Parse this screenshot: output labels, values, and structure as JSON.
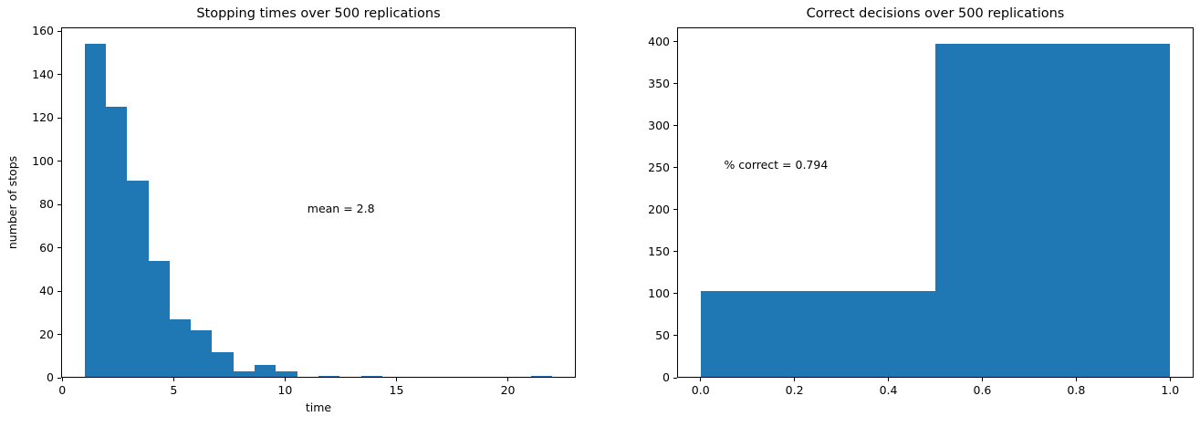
{
  "figure": {
    "background": "#ffffff",
    "text_color": "#000000"
  },
  "chart_data": [
    {
      "type": "bar",
      "subtype": "histogram",
      "title": "Stopping times over 500 replications",
      "xlabel": "time",
      "ylabel": "number of stops",
      "bar_color": "#1f77b4",
      "bin_edges": [
        1.0,
        1.955,
        2.909,
        3.864,
        4.818,
        5.773,
        6.727,
        7.682,
        8.636,
        9.591,
        10.545,
        11.5,
        12.455,
        13.409,
        14.364,
        15.318,
        16.273,
        17.227,
        18.182,
        19.136,
        20.091,
        21.045,
        22.0
      ],
      "counts": [
        154,
        125,
        91,
        54,
        27,
        22,
        12,
        3,
        6,
        3,
        0,
        1,
        0,
        1,
        0,
        0,
        0,
        0,
        0,
        0,
        0,
        1
      ],
      "xlim": [
        -0.05,
        23.05
      ],
      "ylim": [
        0,
        161.7
      ],
      "xticks": [
        0,
        5,
        10,
        15,
        20
      ],
      "xtick_labels": [
        "0",
        "5",
        "10",
        "15",
        "20"
      ],
      "yticks": [
        0,
        20,
        40,
        60,
        80,
        100,
        120,
        140,
        160
      ],
      "ytick_labels": [
        "0",
        "20",
        "40",
        "60",
        "80",
        "100",
        "120",
        "140",
        "160"
      ],
      "annotation": {
        "text": "mean = 2.8",
        "x": 11.0,
        "y": 78
      },
      "grid": false,
      "legend": null
    },
    {
      "type": "bar",
      "subtype": "histogram",
      "title": "Correct decisions over 500 replications",
      "xlabel": "",
      "ylabel": "",
      "bar_color": "#1f77b4",
      "bin_edges": [
        0.0,
        0.5,
        1.0
      ],
      "counts": [
        103,
        397
      ],
      "xlim": [
        -0.05,
        1.05
      ],
      "ylim": [
        0,
        416.85
      ],
      "xticks": [
        0,
        0.2,
        0.4,
        0.6,
        0.8,
        1.0
      ],
      "xtick_labels": [
        "0.0",
        "0.2",
        "0.4",
        "0.6",
        "0.8",
        "1.0"
      ],
      "yticks": [
        0,
        50,
        100,
        150,
        200,
        250,
        300,
        350,
        400
      ],
      "ytick_labels": [
        "0",
        "50",
        "100",
        "150",
        "200",
        "250",
        "300",
        "350",
        "400"
      ],
      "annotation": {
        "text": "% correct = 0.794",
        "x": 0.05,
        "y": 253
      },
      "grid": false,
      "legend": null
    }
  ]
}
